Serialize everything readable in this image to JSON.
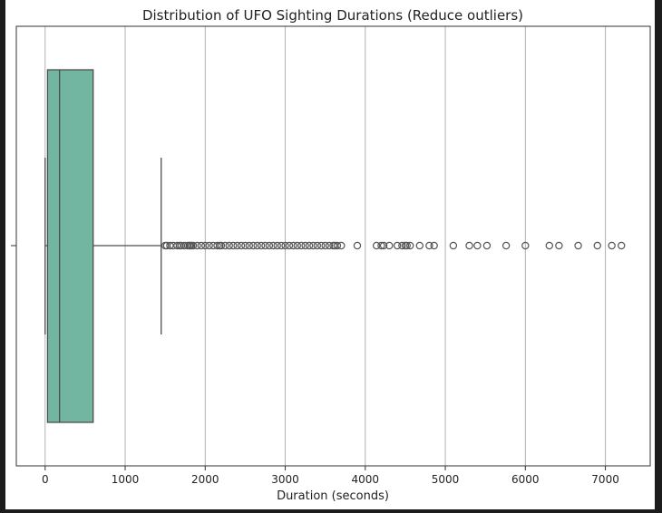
{
  "chart_data": {
    "type": "box",
    "title": "Distribution of UFO Sighting Durations (Reduce outliers)",
    "xlabel": "Duration (seconds)",
    "ylabel": "",
    "xlim": [
      -360,
      7560
    ],
    "xticks": [
      0,
      1000,
      2000,
      3000,
      4000,
      5000,
      6000,
      7000
    ],
    "grid": "x-major",
    "orientation": "horizontal",
    "box": {
      "whisker_low": 0,
      "q1": 30,
      "median": 180,
      "q3": 600,
      "whisker_high": 1450,
      "color": "#72b6a1"
    },
    "outliers": [
      1500,
      1520,
      1560,
      1600,
      1650,
      1680,
      1700,
      1740,
      1780,
      1800,
      1810,
      1830,
      1850,
      1900,
      1950,
      2000,
      2050,
      2100,
      2150,
      2180,
      2200,
      2250,
      2300,
      2350,
      2400,
      2450,
      2500,
      2550,
      2600,
      2650,
      2700,
      2750,
      2800,
      2850,
      2900,
      2950,
      3000,
      3050,
      3100,
      3150,
      3200,
      3250,
      3300,
      3350,
      3400,
      3450,
      3500,
      3550,
      3600,
      3620,
      3650,
      3700,
      3900,
      4140,
      4200,
      4230,
      4300,
      4400,
      4460,
      4500,
      4520,
      4560,
      4680,
      4800,
      4860,
      5100,
      5300,
      5400,
      5520,
      5760,
      6000,
      6300,
      6420,
      6660,
      6900,
      7080,
      7200
    ]
  }
}
